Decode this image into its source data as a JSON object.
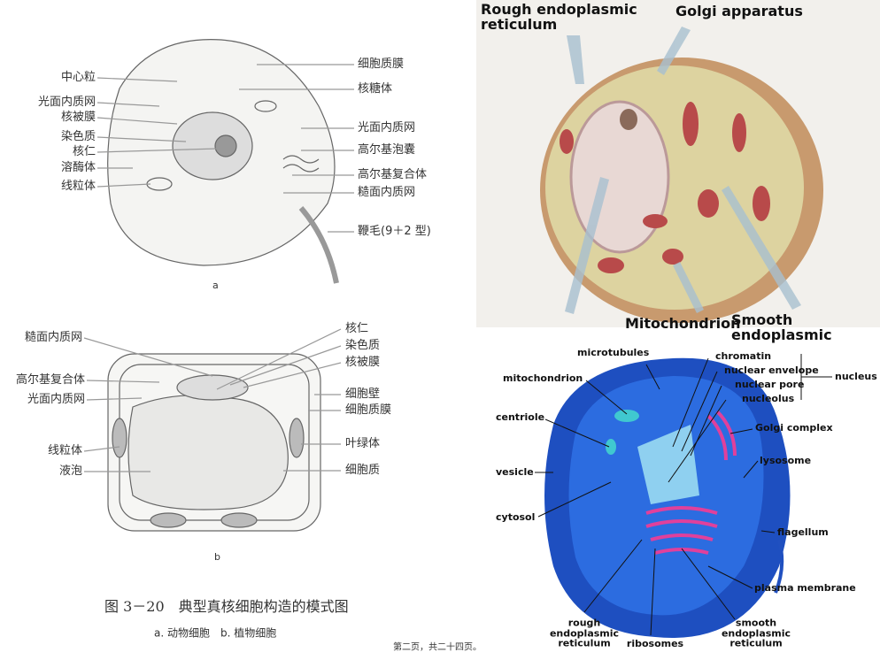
{
  "figure_a": {
    "labels_left": [
      "中心粒",
      "光面内质网",
      "核被膜",
      "染色质",
      "核仁",
      "溶酶体",
      "线粒体"
    ],
    "labels_right": [
      "细胞质膜",
      "核糖体",
      "光面内质网",
      "高尔基泡囊",
      "高尔基复合体",
      "糙面内质网",
      "鞭毛(9＋2 型)"
    ],
    "caption": "a"
  },
  "figure_b": {
    "labels_left": [
      "糙面内质网",
      "高尔基复合体",
      "光面内质网",
      "线粒体",
      "液泡"
    ],
    "labels_right": [
      "核仁",
      "染色质",
      "核被膜",
      "细胞壁",
      "细胞质膜",
      "叶绿体",
      "细胞质"
    ],
    "caption": "b"
  },
  "figure_caption": "图 3－20　典型真核细胞构造的模式图",
  "figure_subcaption": "a. 动物细胞　b. 植物细胞",
  "image_top_right": {
    "labels": [
      "Rough endoplasmic\nreticulum",
      "Golgi apparatus",
      "Mitochondrion",
      "Smooth endoplasmic"
    ]
  },
  "image_bottom_right": {
    "labels": [
      "microtubules",
      "mitochondrion",
      "centriole",
      "vesicle",
      "cytosol",
      "rough\nendoplasmic\nreticulum",
      "ribosomes",
      "smooth\nendoplasmic\nreticulum",
      "plasma membrane",
      "flagellum",
      "lysosome",
      "Golgi complex",
      "chromatin",
      "nuclear envelope",
      "nuclear pore",
      "nucleolus",
      "nucleus"
    ]
  },
  "footer": "第二页，共二十四页。"
}
